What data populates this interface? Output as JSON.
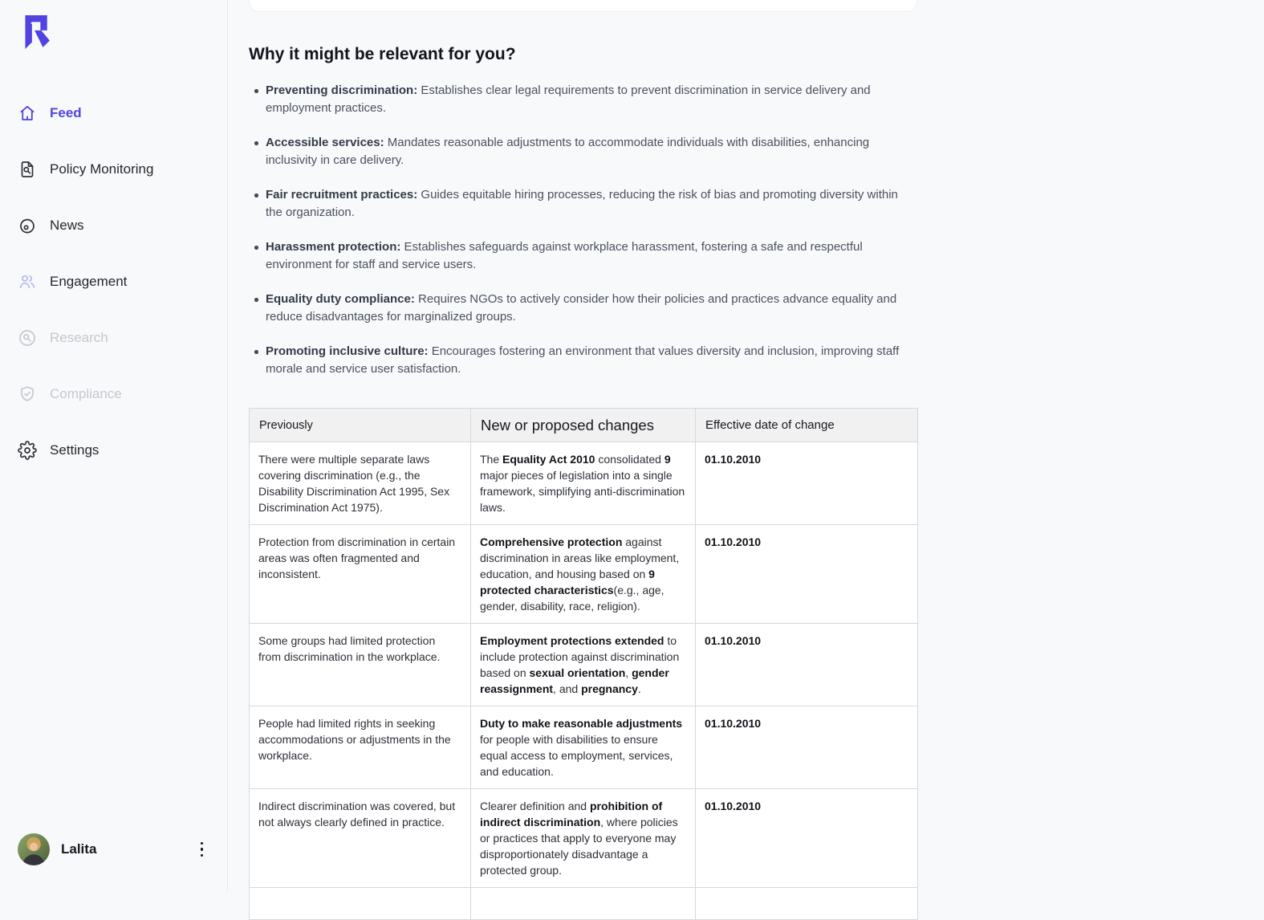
{
  "colors": {
    "accent": "#5143e1",
    "disabled": "#c4c8d0",
    "engagement_icon": "#b7b7ef",
    "table_header_bg": "#f1f1f2",
    "table_border": "#d8d8da"
  },
  "sidebar": {
    "items": [
      {
        "label": "Feed",
        "icon": "home-icon",
        "state": "active"
      },
      {
        "label": "Policy Monitoring",
        "icon": "policy-monitoring-icon",
        "state": "default"
      },
      {
        "label": "News",
        "icon": "news-icon",
        "state": "default"
      },
      {
        "label": "Engagement",
        "icon": "engagement-icon",
        "state": "default"
      },
      {
        "label": "Research",
        "icon": "research-icon",
        "state": "disabled"
      },
      {
        "label": "Compliance",
        "icon": "compliance-icon",
        "state": "disabled"
      },
      {
        "label": "Settings",
        "icon": "settings-icon",
        "state": "default"
      }
    ],
    "user": {
      "name": "Lalita",
      "menu_icon": "kebab-menu-icon"
    }
  },
  "main": {
    "heading": "Why it might be relevant for you?",
    "bullets": [
      {
        "title": "Preventing discrimination:",
        "text": "Establishes clear legal requirements to prevent discrimination in service delivery and employment practices."
      },
      {
        "title": "Accessible services:",
        "text": "Mandates reasonable adjustments to accommodate individuals with disabilities, enhancing inclusivity in care delivery."
      },
      {
        "title": "Fair recruitment practices:",
        "text": "Guides equitable hiring processes, reducing the risk of bias and promoting diversity within the organization."
      },
      {
        "title": "Harassment protection:",
        "text": "Establishes safeguards against workplace harassment, fostering a safe and respectful environment for staff and service users."
      },
      {
        "title": "Equality duty compliance:",
        "text": "Requires NGOs to actively consider how their policies and practices advance equality and reduce disadvantages for marginalized groups."
      },
      {
        "title": "Promoting inclusive culture:",
        "text": "Encourages fostering an environment that values diversity and inclusion, improving staff morale and service user satisfaction."
      }
    ],
    "table": {
      "headers": [
        "Previously",
        "New or proposed changes",
        "Effective date of change"
      ],
      "rows": [
        {
          "previously": "There were multiple separate laws covering discrimination (e.g., the Disability Discrimination Act 1995, Sex Discrimination Act 1975).",
          "changes": [
            [
              "The ",
              0
            ],
            [
              "Equality Act 2010",
              1
            ],
            [
              " consolidated ",
              0
            ],
            [
              "9",
              1
            ],
            [
              " major pieces of legislation into a single framework, simplifying anti-discrimination laws.",
              0
            ]
          ],
          "date": "01.10.2010"
        },
        {
          "previously": "Protection from discrimination in certain areas was often fragmented and inconsistent.",
          "changes": [
            [
              "Comprehensive protection",
              1
            ],
            [
              " against discrimination in areas like employment, education, and housing based on ",
              0
            ],
            [
              "9 protected characteristics",
              1
            ],
            [
              "(e.g., age, gender, disability, race, religion).",
              0
            ]
          ],
          "date": "01.10.2010"
        },
        {
          "previously": "Some groups had limited protection from discrimination in the workplace.",
          "changes": [
            [
              "Employment protections extended",
              1
            ],
            [
              " to include protection against discrimination based on ",
              0
            ],
            [
              "sexual orientation",
              1
            ],
            [
              ", ",
              0
            ],
            [
              "gender reassignment",
              1
            ],
            [
              ", and ",
              0
            ],
            [
              "pregnancy",
              1
            ],
            [
              ".",
              0
            ]
          ],
          "date": "01.10.2010"
        },
        {
          "previously": "People had limited rights in seeking accommodations or adjustments in the workplace.",
          "changes": [
            [
              "Duty to make reasonable adjustments",
              1
            ],
            [
              " for people with disabilities to ensure equal access to employment, services, and education.",
              0
            ]
          ],
          "date": "01.10.2010"
        },
        {
          "previously": "Indirect discrimination was covered, but not always clearly defined in practice.",
          "changes": [
            [
              "Clearer definition and ",
              0
            ],
            [
              "prohibition of indirect discrimination",
              1
            ],
            [
              ", where policies or practices that apply to everyone may disproportionately disadvantage a protected group.",
              0
            ]
          ],
          "date": "01.10.2010"
        },
        {
          "previously": "",
          "changes": [],
          "date": ""
        }
      ]
    }
  }
}
